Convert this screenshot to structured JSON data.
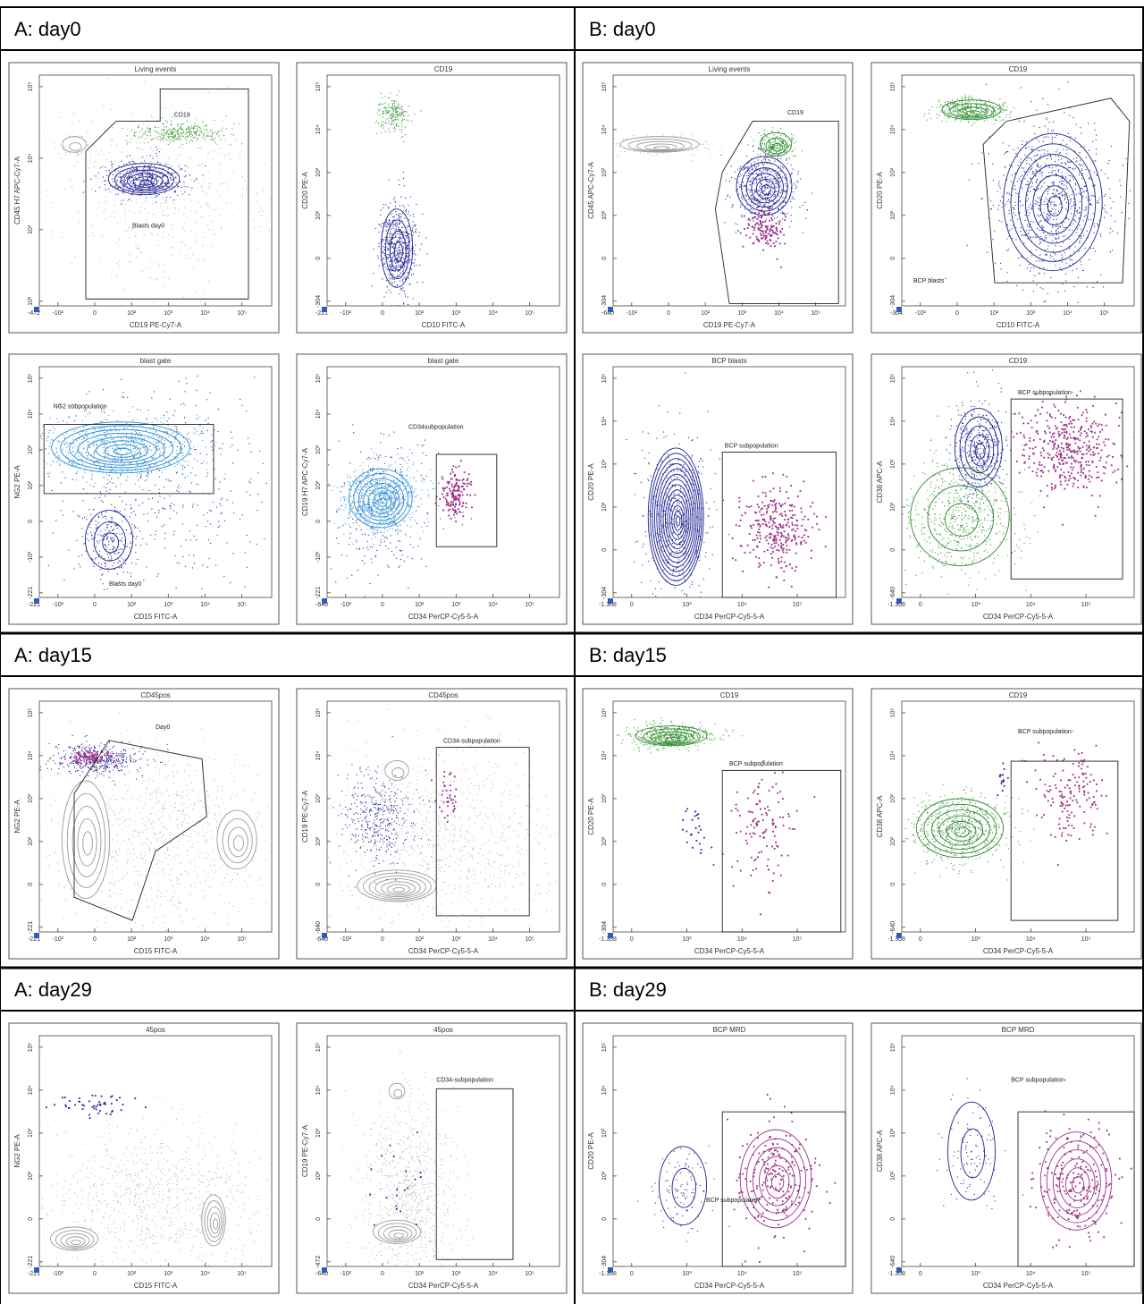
{
  "panels": [
    {
      "header": "A: day0",
      "plots": [
        {
          "title": "Living events",
          "xlabel": "CD19 PE-Cy7-A",
          "ylabel": "CD45 H7 APC-Cy7-A",
          "xticks": [
            "-472",
            "-10²",
            "0",
            "10²",
            "10³",
            "10⁴",
            "10⁵"
          ],
          "yticks": [
            "10²",
            "10³",
            "10⁴",
            "10⁵"
          ],
          "gates": [
            "CD19",
            "Blasts day0"
          ]
        },
        {
          "title": "CD19",
          "xlabel": "CD10 FITC-A",
          "ylabel": "CD20 PE-A",
          "xticks": [
            "-221",
            "-10²",
            "0",
            "10²",
            "10³",
            "10⁴",
            "10⁵"
          ],
          "yticks": [
            "-304",
            "0",
            "10²",
            "10³",
            "10⁴",
            "10⁵"
          ],
          "gates": []
        },
        {
          "title": "blast gate",
          "xlabel": "CD15 FITC-A",
          "ylabel": "NG2 PE-A",
          "xticks": [
            "-221",
            "-10²",
            "0",
            "10²",
            "10³",
            "10⁴",
            "10⁵"
          ],
          "yticks": [
            "-221",
            "-10²",
            "0",
            "10²",
            "10³",
            "10⁴",
            "10⁵"
          ],
          "gates": [
            "NG2 subpopulation",
            "Blasts day0"
          ]
        },
        {
          "title": "blast gate",
          "xlabel": "CD34 PerCP-Cy5-5-A",
          "ylabel": "CD19 H7 APC-Cy7-A",
          "xticks": [
            "-640",
            "-10²",
            "0",
            "10²",
            "10³",
            "10⁴",
            "10⁵"
          ],
          "yticks": [
            "-221",
            "-10²",
            "0",
            "10²",
            "10³",
            "10⁴",
            "10⁵"
          ],
          "gates": [
            "CD34subpopulation"
          ]
        }
      ]
    },
    {
      "header": "B: day0",
      "plots": [
        {
          "title": "Living events",
          "xlabel": "CD19 PE-Cy7-A",
          "ylabel": "CD45 APC-Cy7-A",
          "xticks": [
            "-640",
            "-10²",
            "0",
            "10²",
            "10³",
            "10⁴",
            "10⁵"
          ],
          "yticks": [
            "-304",
            "0",
            "10²",
            "10³",
            "10⁴",
            "10⁵"
          ],
          "gates": [
            "CD19"
          ]
        },
        {
          "title": "CD19",
          "xlabel": "CD10 FITC-A",
          "ylabel": "CD20 PE-A",
          "xticks": [
            "-304",
            "-10²",
            "0",
            "10²",
            "10³",
            "10⁴",
            "10⁵"
          ],
          "yticks": [
            "-304",
            "0",
            "10²",
            "10³",
            "10⁴",
            "10⁵"
          ],
          "gates": [
            "BCP blasts"
          ]
        },
        {
          "title": "BCP blasts",
          "xlabel": "CD34 PerCP-Cy5-5-A",
          "ylabel": "CD20 PE-A",
          "xticks": [
            "-1.308",
            "0",
            "10³",
            "10⁴",
            "10⁵"
          ],
          "yticks": [
            "-304",
            "0",
            "10²",
            "10³",
            "10⁴",
            "10⁵"
          ],
          "gates": [
            "BCP subpopulation"
          ]
        },
        {
          "title": "CD19",
          "xlabel": "CD34 PerCP-Cy5-5-A",
          "ylabel": "CD38 APC-A",
          "xticks": [
            "-1.308",
            "0",
            "10³",
            "10⁴",
            "10⁵"
          ],
          "yticks": [
            "-640",
            "0",
            "10²",
            "10³",
            "10⁴",
            "10⁵"
          ],
          "gates": [
            "BCP subpopulation-"
          ]
        }
      ]
    },
    {
      "header": "A: day15",
      "plots": [
        {
          "title": "CD45pos",
          "xlabel": "CD15 FITC-A",
          "ylabel": "NG2 PE-A",
          "xticks": [
            "-221",
            "-10²",
            "0",
            "10²",
            "10³",
            "10⁴",
            "10⁵"
          ],
          "yticks": [
            "-221",
            "0",
            "10²",
            "10³",
            "10⁴",
            "10⁵"
          ],
          "gates": [
            "Day0"
          ]
        },
        {
          "title": "CD45pos",
          "xlabel": "CD34 PerCP-Cy5-5-A",
          "ylabel": "CD19 PE-Cy7-A",
          "xticks": [
            "-640",
            "-10²",
            "0",
            "10²",
            "10³",
            "10⁴",
            "10⁵"
          ],
          "yticks": [
            "-640",
            "0",
            "10²",
            "10³",
            "10⁴",
            "10⁵"
          ],
          "gates": [
            "CD34-subpopulation"
          ]
        }
      ]
    },
    {
      "header": "B: day15",
      "plots": [
        {
          "title": "CD19",
          "xlabel": "CD34 PerCP-Cy5-5-A",
          "ylabel": "CD20 PE-A",
          "xticks": [
            "-1.308",
            "0",
            "10³",
            "10⁴",
            "10⁵"
          ],
          "yticks": [
            "-304",
            "0",
            "10²",
            "10³",
            "10⁴",
            "10⁵"
          ],
          "gates": [
            "BCP subpopulation"
          ]
        },
        {
          "title": "CD19",
          "xlabel": "CD34 PerCP-Cy5-5-A",
          "ylabel": "CD38 APC-A",
          "xticks": [
            "-1.308",
            "0",
            "10³",
            "10⁴",
            "10⁵"
          ],
          "yticks": [
            "-640",
            "0",
            "10²",
            "10³",
            "10⁴",
            "10⁵"
          ],
          "gates": [
            "BCP subpopulation-"
          ]
        }
      ]
    },
    {
      "header": "A: day29",
      "plots": [
        {
          "title": "45pos",
          "xlabel": "CD15 FITC-A",
          "ylabel": "NG2 PE-A",
          "xticks": [
            "-221",
            "-10²",
            "0",
            "10²",
            "10³",
            "10⁴",
            "10⁵"
          ],
          "yticks": [
            "-221",
            "0",
            "10²",
            "10³",
            "10⁴",
            "10⁵"
          ],
          "gates": []
        },
        {
          "title": "45pos",
          "xlabel": "CD34 PerCP-Cy5-5-A",
          "ylabel": "CD19 PE-Cy7-A",
          "xticks": [
            "-640",
            "-10²",
            "0",
            "10²",
            "10³",
            "10⁴",
            "10⁵"
          ],
          "yticks": [
            "-472",
            "0",
            "10²",
            "10³",
            "10⁴",
            "10⁵"
          ],
          "gates": [
            "CD34-subpopulation"
          ]
        }
      ]
    },
    {
      "header": "B: day29",
      "plots": [
        {
          "title": "BCP MRD",
          "xlabel": "CD34 PerCP-Cy5-5-A",
          "ylabel": "CD20 PE-A",
          "xticks": [
            "-1.308",
            "0",
            "10³",
            "10⁴",
            "10⁵"
          ],
          "yticks": [
            "-304",
            "0",
            "10²",
            "10³",
            "10⁴",
            "10⁵"
          ],
          "gates": [
            "BCP subpopulation"
          ]
        },
        {
          "title": "BCP MRD",
          "xlabel": "CD34 PerCP-Cy5-5-A",
          "ylabel": "CD38 APC-A",
          "xticks": [
            "-1.308",
            "0",
            "10³",
            "10⁴",
            "10⁵"
          ],
          "yticks": [
            "-640",
            "0",
            "10²",
            "10³",
            "10⁴",
            "10⁵"
          ],
          "gates": [
            "BCP subpopulation-"
          ]
        }
      ]
    }
  ]
}
